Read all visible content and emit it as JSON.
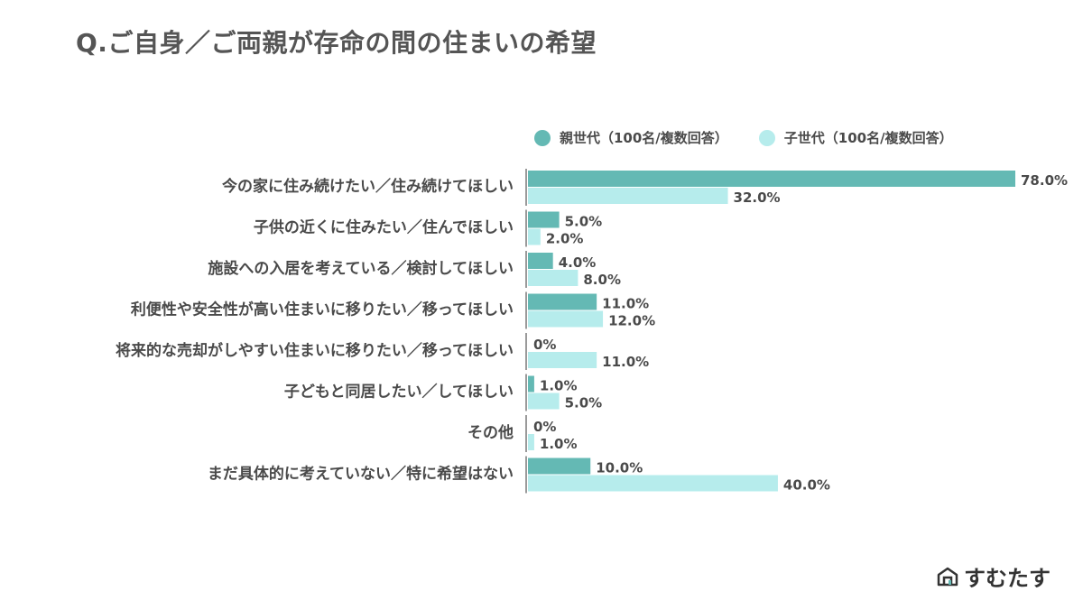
{
  "title": "Q.ご自身／ご両親が存命の間の住まいの希望",
  "brand": {
    "name": "すむたす",
    "icon": "house-logo-icon"
  },
  "colors": {
    "parent": "#64b9b4",
    "child": "#b6ecec",
    "axis": "#9a9a9a"
  },
  "chart_data": {
    "type": "bar",
    "orientation": "horizontal",
    "categories": [
      "今の家に住み続けたい／住み続けてほしい",
      "子供の近くに住みたい／住んでほしい",
      "施設への入居を考えている／検討してほしい",
      "利便性や安全性が高い住まいに移りたい／移ってほしい",
      "将来的な売却がしやすい住まいに移りたい／移ってほしい",
      "子どもと同居したい／してほしい",
      "その他",
      "まだ具体的に考えていない／特に希望はない"
    ],
    "series": [
      {
        "name": "親世代（100名/複数回答）",
        "values": [
          78.0,
          5.0,
          4.0,
          11.0,
          0,
          1.0,
          0,
          10.0
        ],
        "labels": [
          "78.0%",
          "5.0%",
          "4.0%",
          "11.0%",
          "0%",
          "1.0%",
          "0%",
          "10.0%"
        ]
      },
      {
        "name": "子世代（100名/複数回答）",
        "values": [
          32.0,
          2.0,
          8.0,
          12.0,
          11.0,
          5.0,
          1.0,
          40.0
        ],
        "labels": [
          "32.0%",
          "2.0%",
          "8.0%",
          "12.0%",
          "11.0%",
          "5.0%",
          "1.0%",
          "40.0%"
        ]
      }
    ],
    "xlim": [
      0,
      78
    ],
    "legend": "top",
    "grid": false
  }
}
